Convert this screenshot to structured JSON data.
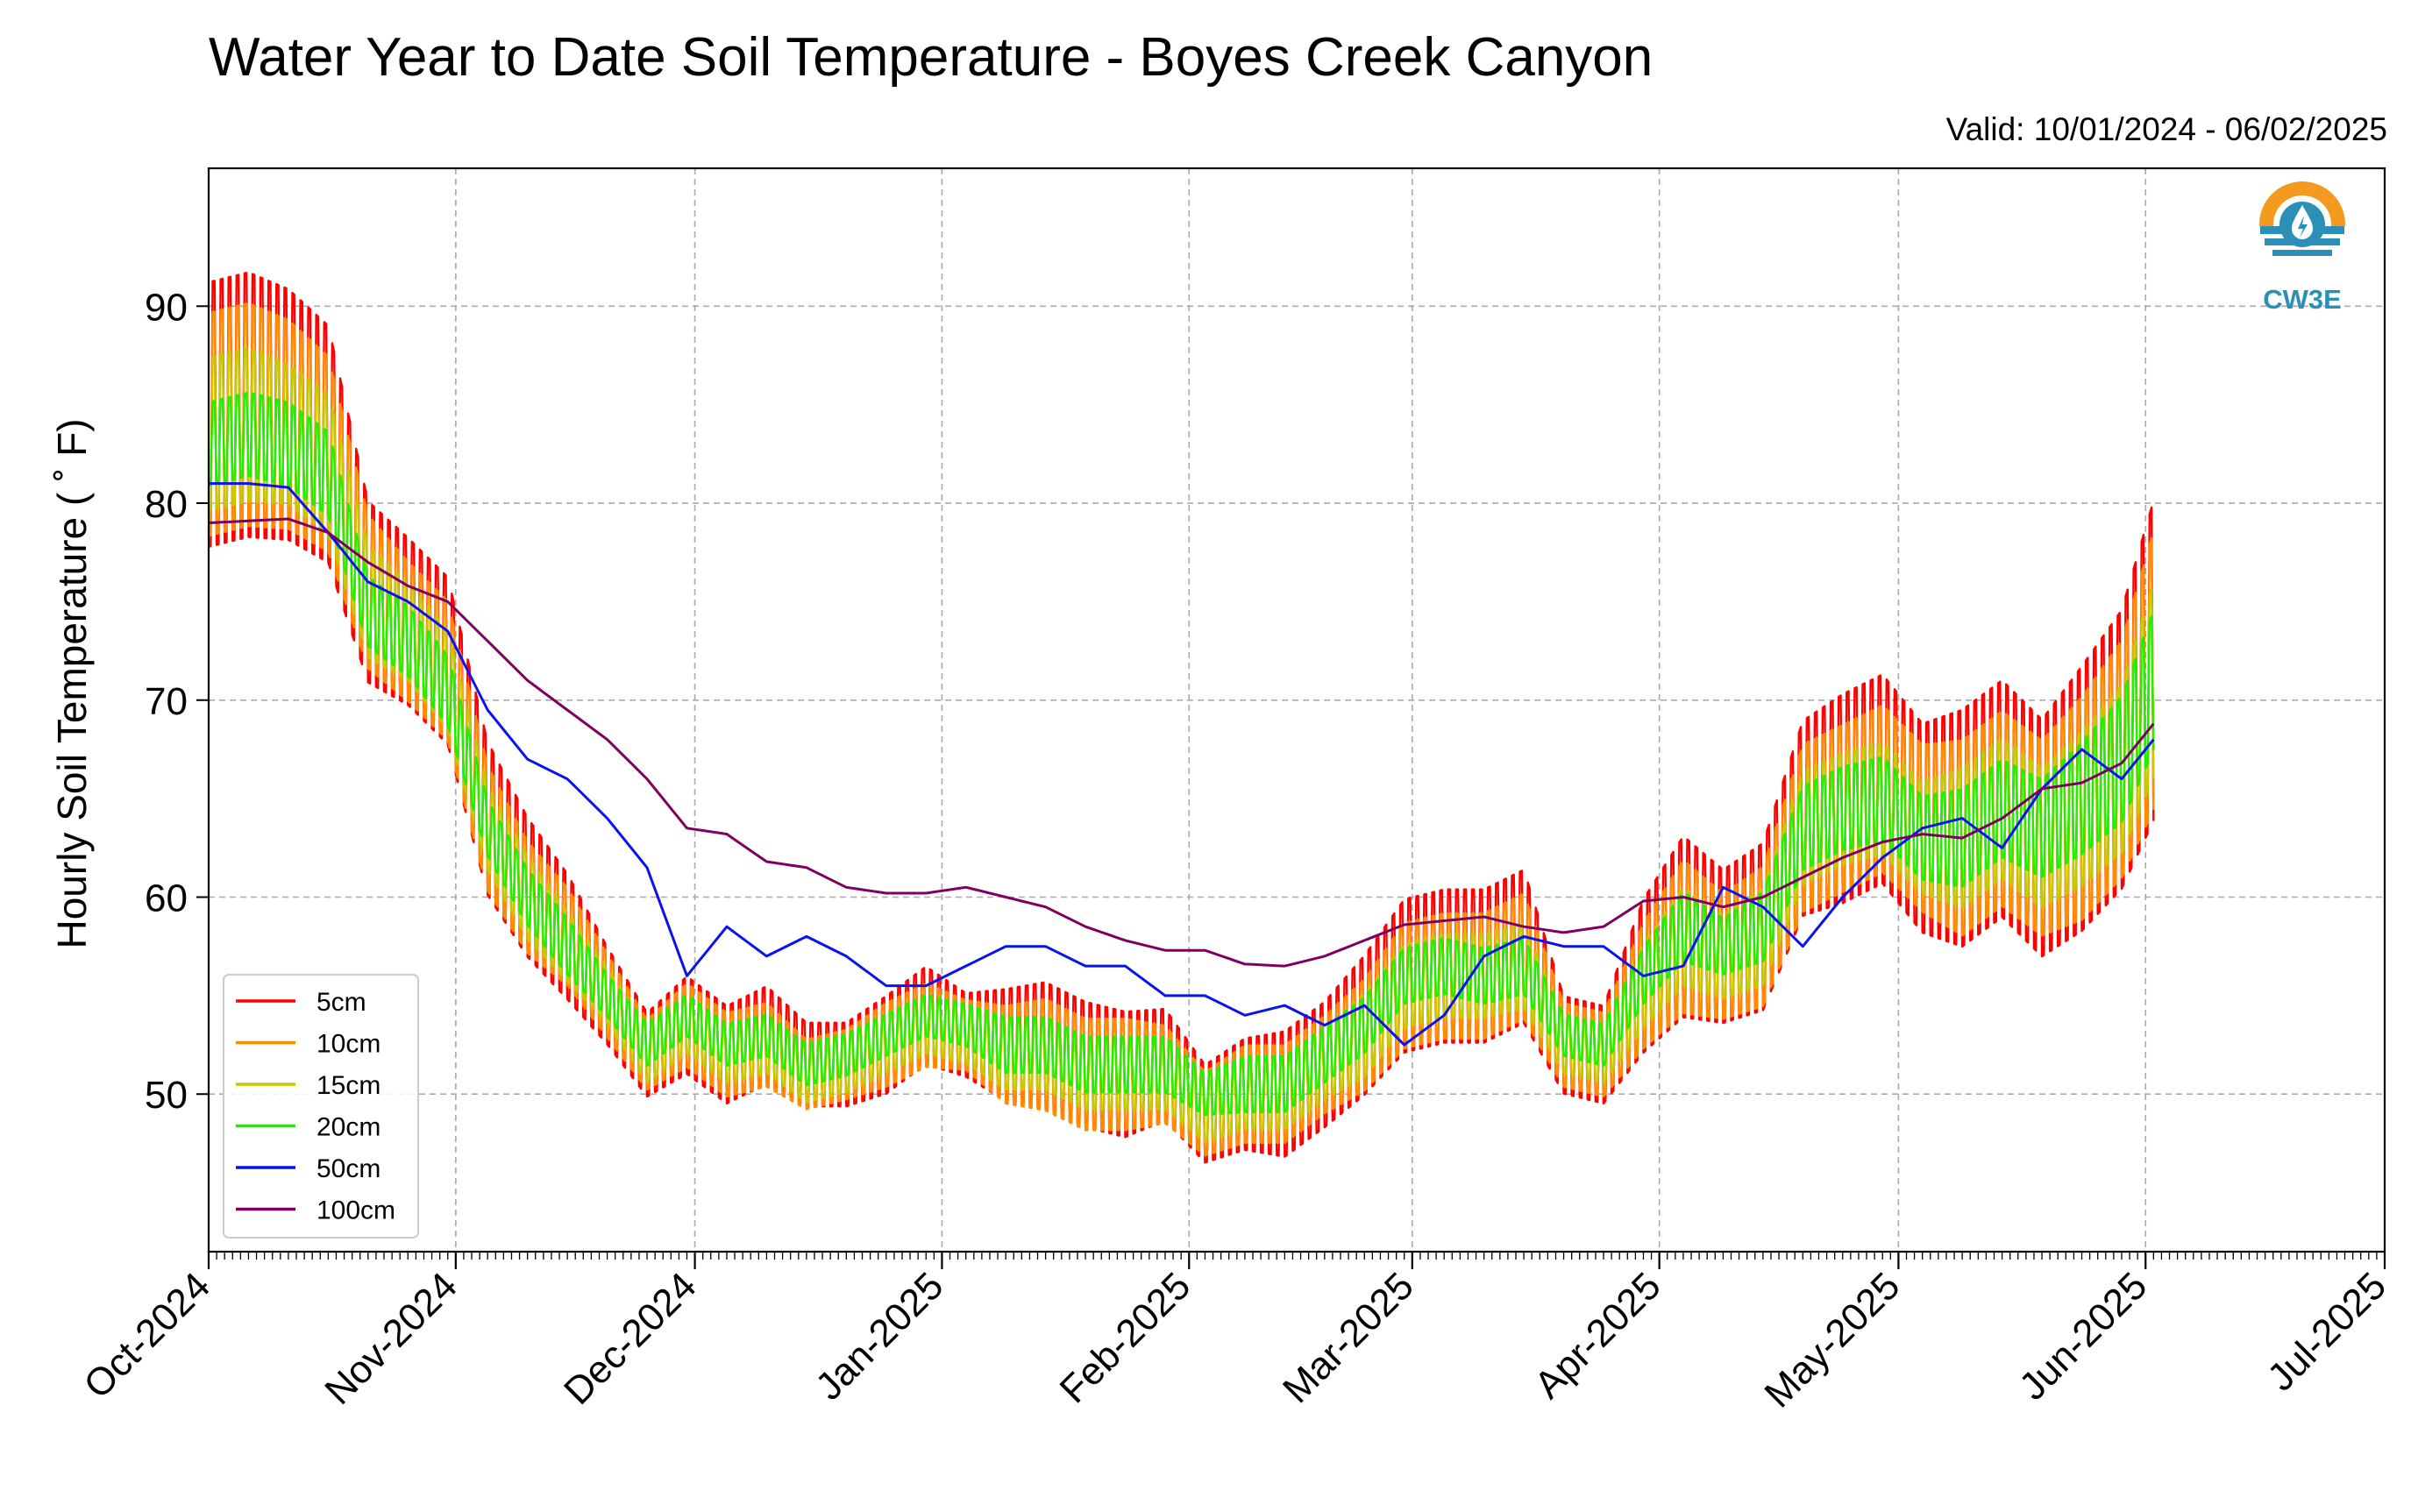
{
  "chart_data": {
    "type": "line",
    "title": "Water Year to Date Soil Temperature - Boyes Creek Canyon",
    "subtitle": "Valid: 10/01/2024 - 06/02/2025",
    "ylabel": "Hourly Soil Temperature ($^\\circ$F)",
    "ylabel_display": "Hourly Soil Temperature ( ˚ F)",
    "xlabel": "",
    "ylim": [
      42.0,
      97.0
    ],
    "xlim": [
      "2024-10-01",
      "2025-07-01"
    ],
    "yticks": [
      50,
      60,
      70,
      80,
      90
    ],
    "xtick_labels": [
      "Oct-2024",
      "Nov-2024",
      "Dec-2024",
      "Jan-2025",
      "Feb-2025",
      "Mar-2025",
      "Apr-2025",
      "May-2025",
      "Jun-2025",
      "Jul-2025"
    ],
    "xtick_dates": [
      "2024-10-01",
      "2024-11-01",
      "2024-12-01",
      "2025-01-01",
      "2025-02-01",
      "2025-03-01",
      "2025-04-01",
      "2025-05-01",
      "2025-06-01",
      "2025-07-01"
    ],
    "grid": true,
    "legend_position": "lower-left",
    "logo_text": "CW3E",
    "series_daily_x": [
      "2024-10-01",
      "2024-10-06",
      "2024-10-11",
      "2024-10-16",
      "2024-10-21",
      "2024-10-26",
      "2024-10-31",
      "2024-11-05",
      "2024-11-10",
      "2024-11-15",
      "2024-11-20",
      "2024-11-25",
      "2024-11-30",
      "2024-12-05",
      "2024-12-10",
      "2024-12-15",
      "2024-12-20",
      "2024-12-25",
      "2024-12-30",
      "2025-01-04",
      "2025-01-09",
      "2025-01-14",
      "2025-01-19",
      "2025-01-24",
      "2025-01-29",
      "2025-02-03",
      "2025-02-08",
      "2025-02-13",
      "2025-02-18",
      "2025-02-23",
      "2025-02-28",
      "2025-03-05",
      "2025-03-10",
      "2025-03-15",
      "2025-03-20",
      "2025-03-25",
      "2025-03-30",
      "2025-04-04",
      "2025-04-09",
      "2025-04-14",
      "2025-04-19",
      "2025-04-24",
      "2025-04-29",
      "2025-05-04",
      "2025-05-09",
      "2025-05-14",
      "2025-05-19",
      "2025-05-24",
      "2025-05-29",
      "2025-06-02"
    ],
    "series": [
      {
        "name": "5cm",
        "color": "#ff0000",
        "mean": [
          84.5,
          85.0,
          84.5,
          83.0,
          75.5,
          74.0,
          72.0,
          64.0,
          60.5,
          58.0,
          55.0,
          52.0,
          53.5,
          52.0,
          53.0,
          51.5,
          51.5,
          52.5,
          54.0,
          53.0,
          52.5,
          52.5,
          51.5,
          51.0,
          51.5,
          49.0,
          50.0,
          50.0,
          51.5,
          53.5,
          56.0,
          56.5,
          56.5,
          57.5,
          52.5,
          52.0,
          56.0,
          58.5,
          57.5,
          58.5,
          64.0,
          65.0,
          66.0,
          63.5,
          63.5,
          65.0,
          63.0,
          65.0,
          67.5,
          72.0
        ],
        "amp": [
          9.5,
          9.5,
          9.0,
          8.5,
          6.5,
          6.0,
          6.0,
          5.5,
          5.0,
          4.5,
          3.5,
          3.0,
          3.5,
          3.5,
          3.5,
          3.0,
          3.0,
          3.5,
          3.5,
          3.0,
          4.0,
          4.5,
          4.5,
          4.5,
          4.0,
          3.5,
          4.0,
          4.5,
          4.5,
          5.0,
          5.5,
          5.5,
          5.5,
          5.5,
          3.5,
          3.5,
          5.5,
          6.5,
          5.5,
          6.0,
          7.0,
          7.5,
          7.5,
          7.5,
          8.5,
          8.5,
          8.5,
          9.5,
          10.0,
          11.5
        ]
      },
      {
        "name": "10cm",
        "color": "#ff8c00",
        "mean": [
          84.0,
          84.5,
          84.0,
          82.5,
          75.5,
          73.5,
          71.5,
          63.5,
          60.0,
          58.0,
          55.0,
          52.0,
          53.5,
          52.0,
          52.5,
          51.0,
          51.5,
          52.5,
          53.5,
          53.0,
          52.0,
          52.0,
          51.0,
          51.0,
          51.0,
          49.0,
          50.0,
          50.0,
          51.5,
          53.0,
          55.5,
          56.0,
          56.0,
          57.0,
          52.5,
          52.0,
          55.5,
          58.0,
          57.0,
          58.0,
          63.5,
          64.5,
          65.5,
          63.5,
          63.0,
          64.5,
          63.0,
          64.5,
          67.0,
          71.5
        ],
        "amp": [
          8.0,
          8.0,
          7.5,
          7.0,
          5.5,
          5.0,
          5.0,
          4.5,
          4.0,
          3.5,
          3.0,
          2.5,
          3.0,
          3.0,
          3.0,
          2.5,
          2.5,
          3.0,
          3.0,
          2.5,
          3.5,
          4.0,
          4.0,
          4.0,
          3.5,
          3.0,
          3.5,
          3.5,
          3.5,
          4.0,
          4.5,
          4.5,
          4.5,
          4.5,
          3.0,
          3.0,
          4.5,
          5.5,
          4.5,
          5.0,
          6.0,
          6.0,
          6.0,
          6.0,
          7.0,
          7.0,
          7.0,
          8.0,
          8.5,
          10.0
        ]
      },
      {
        "name": "15cm",
        "color": "#c8c800",
        "mean": [
          83.5,
          84.0,
          83.5,
          82.0,
          75.0,
          73.5,
          71.0,
          63.5,
          60.0,
          57.5,
          55.0,
          52.0,
          53.5,
          52.0,
          52.5,
          51.0,
          51.5,
          52.5,
          53.5,
          53.0,
          52.0,
          52.0,
          51.0,
          51.0,
          51.0,
          49.0,
          50.0,
          50.0,
          51.5,
          53.0,
          55.5,
          56.0,
          56.0,
          56.5,
          52.5,
          52.0,
          55.5,
          58.0,
          57.0,
          58.0,
          63.5,
          64.5,
          65.0,
          63.0,
          63.0,
          64.5,
          63.0,
          64.5,
          66.5,
          71.0
        ],
        "amp": [
          5.5,
          5.5,
          5.0,
          5.0,
          4.0,
          3.5,
          3.5,
          3.0,
          3.0,
          2.5,
          2.0,
          2.0,
          2.0,
          2.0,
          2.0,
          2.0,
          2.0,
          2.0,
          2.0,
          2.0,
          2.5,
          2.5,
          2.5,
          2.5,
          2.5,
          2.0,
          2.5,
          2.5,
          2.5,
          3.0,
          3.0,
          3.0,
          3.0,
          3.0,
          2.0,
          2.0,
          3.0,
          3.5,
          3.0,
          3.5,
          4.0,
          4.0,
          4.0,
          4.0,
          5.0,
          5.0,
          5.0,
          5.5,
          6.0,
          7.0
        ]
      },
      {
        "name": "20cm",
        "color": "#22ee00",
        "mean": [
          83.0,
          83.5,
          83.0,
          81.5,
          74.5,
          73.0,
          70.5,
          63.5,
          60.0,
          57.5,
          55.0,
          52.5,
          54.0,
          52.5,
          53.0,
          51.5,
          52.0,
          53.0,
          54.0,
          53.5,
          52.5,
          52.5,
          51.5,
          51.5,
          51.5,
          50.0,
          50.5,
          50.5,
          52.0,
          53.5,
          56.0,
          56.5,
          56.0,
          56.5,
          53.0,
          52.5,
          56.0,
          58.5,
          57.5,
          58.5,
          63.5,
          64.5,
          65.0,
          63.0,
          63.0,
          64.5,
          63.5,
          65.0,
          67.0,
          71.0
        ],
        "amp": [
          3.0,
          3.0,
          3.0,
          3.0,
          2.5,
          2.5,
          2.5,
          2.0,
          2.0,
          2.0,
          1.5,
          1.5,
          1.5,
          1.5,
          1.5,
          1.5,
          1.5,
          1.5,
          1.5,
          1.5,
          2.0,
          2.0,
          2.0,
          2.0,
          2.0,
          1.5,
          2.0,
          2.0,
          2.0,
          2.0,
          2.0,
          2.0,
          2.0,
          2.0,
          1.5,
          1.5,
          2.0,
          2.5,
          2.0,
          2.5,
          3.0,
          3.0,
          3.0,
          3.0,
          3.5,
          3.5,
          3.5,
          4.0,
          4.5,
          5.0
        ]
      },
      {
        "name": "50cm",
        "color": "#0a12ee",
        "values": [
          81.0,
          81.0,
          80.8,
          78.5,
          76.0,
          75.0,
          73.5,
          69.5,
          67.0,
          66.0,
          64.0,
          61.5,
          56.0,
          58.5,
          57.0,
          58.0,
          57.0,
          55.5,
          55.5,
          56.5,
          57.5,
          57.5,
          56.5,
          56.5,
          55.0,
          55.0,
          54.0,
          54.5,
          53.5,
          54.5,
          52.5,
          54.0,
          57.0,
          58.0,
          57.5,
          57.5,
          56.0,
          56.5,
          60.5,
          59.5,
          57.5,
          60.0,
          62.0,
          63.5,
          64.0,
          62.5,
          65.5,
          67.5,
          66.0,
          68.0
        ]
      },
      {
        "name": "100cm",
        "color": "#800060",
        "values": [
          79.0,
          79.1,
          79.2,
          78.5,
          77.0,
          75.8,
          75.0,
          73.0,
          71.0,
          69.5,
          68.0,
          66.0,
          63.5,
          63.2,
          61.8,
          61.5,
          60.5,
          60.2,
          60.2,
          60.5,
          60.0,
          59.5,
          58.5,
          57.8,
          57.3,
          57.3,
          56.6,
          56.5,
          57.0,
          57.8,
          58.6,
          58.8,
          59.0,
          58.5,
          58.2,
          58.5,
          59.8,
          60.0,
          59.5,
          60.0,
          61.0,
          62.0,
          62.8,
          63.2,
          63.0,
          64.0,
          65.5,
          65.8,
          66.8,
          68.8
        ]
      }
    ]
  }
}
